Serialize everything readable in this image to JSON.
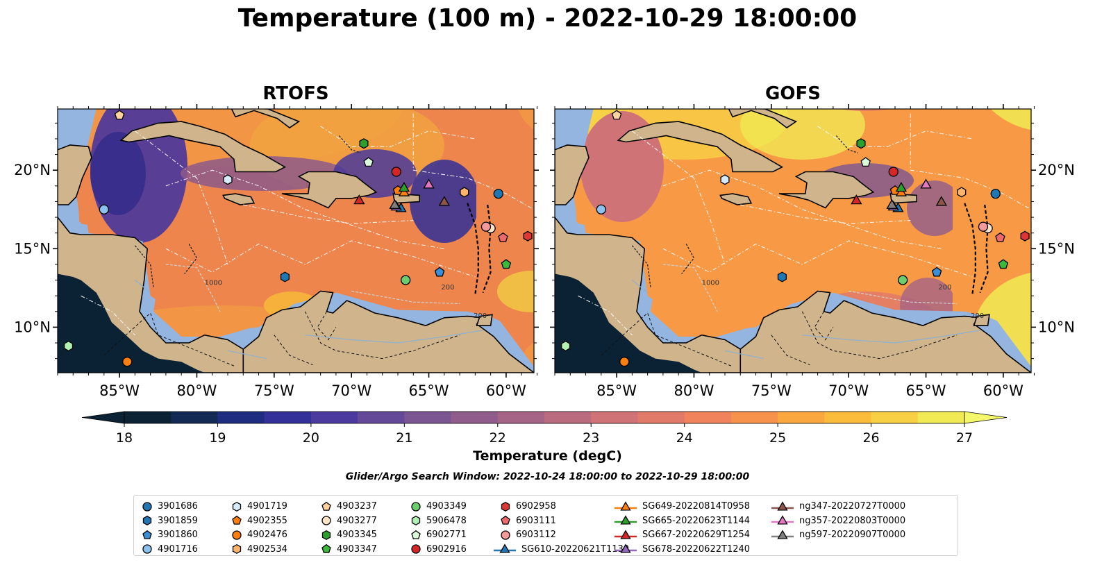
{
  "title": "Temperature (100 m) - 2022-10-29 18:00:00",
  "panels": [
    {
      "title": "RTOFS"
    },
    {
      "title": "GOFS"
    }
  ],
  "axes": {
    "lon_ticks": [
      "85°W",
      "80°W",
      "75°W",
      "70°W",
      "65°W",
      "60°W"
    ],
    "lat_ticks": [
      "20°N",
      "15°N",
      "10°N"
    ],
    "lon_range": [
      -89,
      -58.2
    ],
    "lat_range": [
      7.1,
      23.9
    ]
  },
  "colorbar": {
    "label": "Temperature (degC)",
    "ticks": [
      "18",
      "19",
      "20",
      "21",
      "22",
      "23",
      "24",
      "25",
      "26",
      "27"
    ],
    "range": [
      18,
      27
    ],
    "extend": "both",
    "colors": [
      "#0a2234",
      "#132a55",
      "#1f2d80",
      "#33309a",
      "#4c3a9e",
      "#654999",
      "#7a5592",
      "#8f5c8c",
      "#a56485",
      "#bb6b7e",
      "#d07376",
      "#e27a69",
      "#f0835b",
      "#f7924c",
      "#fba73f",
      "#fbbb3b",
      "#f7d143",
      "#f1ea54"
    ]
  },
  "contour_labels": [
    "1000",
    "200"
  ],
  "search_window": "Glider/Argo Search Window: 2022-10-24 18:00:00 to 2022-10-29 18:00:00",
  "markers": [
    {
      "id": "3901686",
      "shape": "circle",
      "color": "#1f77b4",
      "lon": -60.5,
      "lat": 18.5
    },
    {
      "id": "3901859",
      "shape": "hexagon",
      "color": "#1f77b4",
      "lon": -74.3,
      "lat": 13.2
    },
    {
      "id": "3901860",
      "shape": "pentagon",
      "color": "#3a8fd8",
      "lon": -64.3,
      "lat": 13.5
    },
    {
      "id": "4901716",
      "shape": "circle",
      "color": "#8cc2f0",
      "lon": -86.0,
      "lat": 17.5
    },
    {
      "id": "4901719",
      "shape": "hexagon",
      "color": "#d6ecfb",
      "lon": -78.0,
      "lat": 19.4
    },
    {
      "id": "4902355",
      "shape": "pentagon",
      "color": "#ff7f0e",
      "lon": -67.0,
      "lat": 18.7
    },
    {
      "id": "4902476",
      "shape": "circle",
      "color": "#ff7f0e",
      "lon": -84.5,
      "lat": 7.8
    },
    {
      "id": "4902534",
      "shape": "hexagon",
      "color": "#ffb36b",
      "lon": -62.7,
      "lat": 18.6
    },
    {
      "id": "4903237",
      "shape": "pentagon",
      "color": "#ffd2a0",
      "lon": -85.0,
      "lat": 23.5
    },
    {
      "id": "4903277",
      "shape": "circle",
      "color": "#ffe5c8",
      "lon": -61.0,
      "lat": 16.3
    },
    {
      "id": "4903345",
      "shape": "hexagon",
      "color": "#2ca02c",
      "lon": -69.2,
      "lat": 21.7
    },
    {
      "id": "4903347",
      "shape": "pentagon",
      "color": "#3cb83c",
      "lon": -60.0,
      "lat": 14.0
    },
    {
      "id": "4903349",
      "shape": "circle",
      "color": "#6ccd6c",
      "lon": -66.5,
      "lat": 13.0
    },
    {
      "id": "5906478",
      "shape": "hexagon",
      "color": "#b3f0b3",
      "lon": -88.3,
      "lat": 8.8
    },
    {
      "id": "6902771",
      "shape": "pentagon",
      "color": "#dcfadc",
      "lon": -68.9,
      "lat": 20.5
    },
    {
      "id": "6902916",
      "shape": "circle",
      "color": "#d62728",
      "lon": -67.1,
      "lat": 19.9
    },
    {
      "id": "6902958",
      "shape": "hexagon",
      "color": "#e03535",
      "lon": -58.6,
      "lat": 15.8
    },
    {
      "id": "6903111",
      "shape": "pentagon",
      "color": "#ee6a6a",
      "lon": -60.2,
      "lat": 15.7
    },
    {
      "id": "6903112",
      "shape": "circle",
      "color": "#f59a9a",
      "lon": -61.3,
      "lat": 16.4
    },
    {
      "id": "SG610-20220621T1130",
      "shape": "triangle",
      "color": "#1f77b4",
      "lon": -66.8,
      "lat": 17.6
    },
    {
      "id": "SG649-20220814T0958",
      "shape": "triangle",
      "color": "#ff7f0e",
      "lon": -66.6,
      "lat": 18.6
    },
    {
      "id": "SG665-20220623T1144",
      "shape": "triangle",
      "color": "#2ca02c",
      "lon": -66.6,
      "lat": 18.9
    },
    {
      "id": "SG667-20220629T1254",
      "shape": "triangle",
      "color": "#d62728",
      "lon": -69.5,
      "lat": 18.1
    },
    {
      "id": "SG678-20220622T1240",
      "shape": "triangle",
      "color": "#9467bd",
      "lon": -67.1,
      "lat": 17.7
    },
    {
      "id": "ng347-20220727T0000",
      "shape": "triangle",
      "color": "#8c564b",
      "lon": -64.0,
      "lat": 18.0
    },
    {
      "id": "ng357-20220803T0000",
      "shape": "triangle",
      "color": "#e377c2",
      "lon": -65.0,
      "lat": 19.1
    },
    {
      "id": "ng597-20220907T0000",
      "shape": "triangle",
      "color": "#7f7f7f",
      "lon": -67.2,
      "lat": 17.8
    }
  ]
}
